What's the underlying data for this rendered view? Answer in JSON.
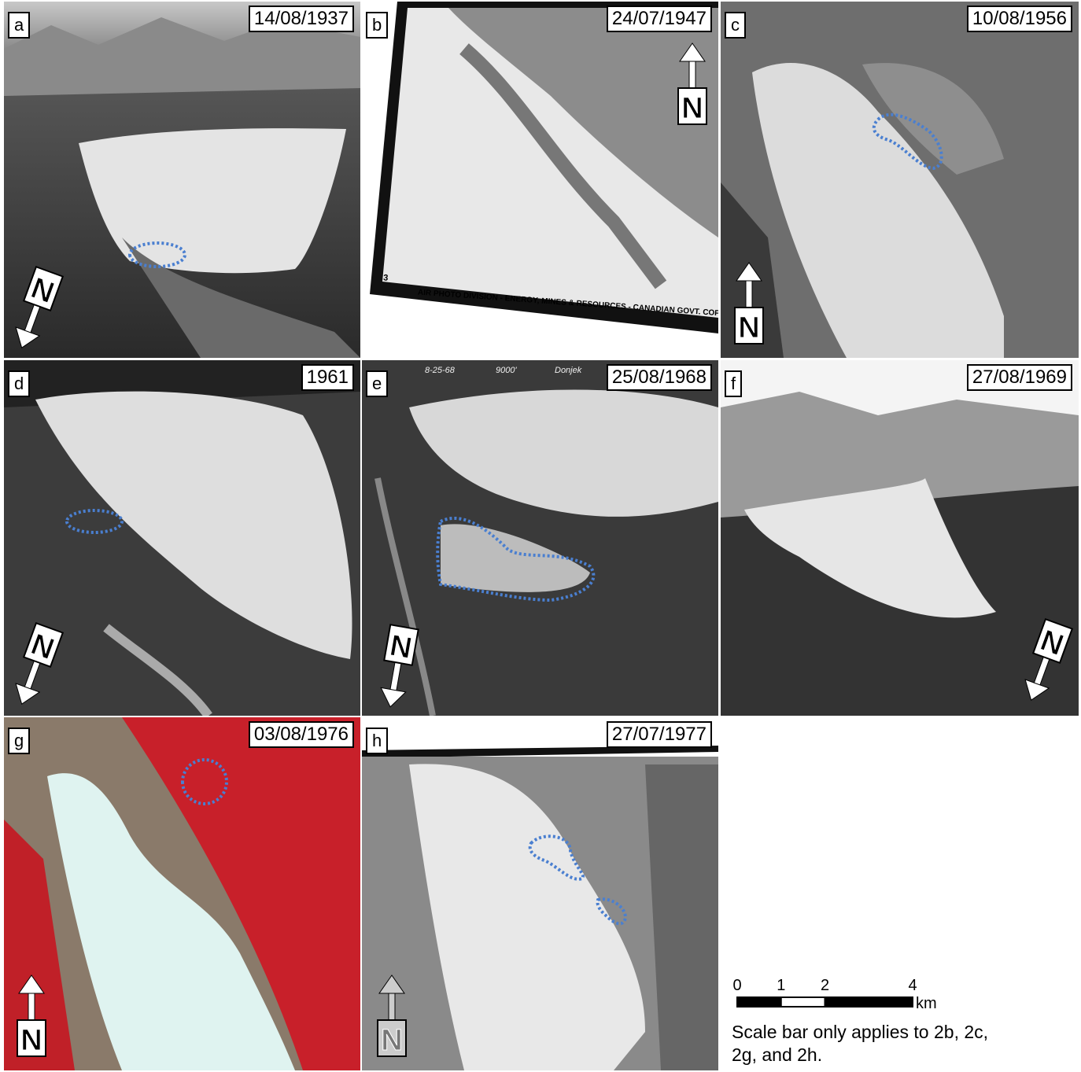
{
  "panels": [
    {
      "letter": "a",
      "date": "14/08/1937",
      "north": "N"
    },
    {
      "letter": "b",
      "date": "24/07/1947",
      "north": "N",
      "photo_text": [
        "3",
        "AIR PHOTO DIVISION - ENERGY, MINES & RESOURCES - CANADIAN GOVT. COPYRIGHT"
      ]
    },
    {
      "letter": "c",
      "date": "10/08/1956",
      "north": "N"
    },
    {
      "letter": "d",
      "date": "1961",
      "north": "N"
    },
    {
      "letter": "e",
      "date": "25/08/1968",
      "north": "N",
      "photo_text": [
        "8-25-68",
        "9000'",
        "Donjek"
      ]
    },
    {
      "letter": "f",
      "date": "27/08/1969",
      "north": "N"
    },
    {
      "letter": "g",
      "date": "03/08/1976",
      "north": "N"
    },
    {
      "letter": "h",
      "date": "27/07/1977",
      "north": "N"
    }
  ],
  "scale_bar": {
    "ticks": [
      0,
      1,
      2,
      4
    ],
    "unit": "km",
    "note": "Scale bar only applies to 2b, 2c, 2g, and 2h."
  }
}
